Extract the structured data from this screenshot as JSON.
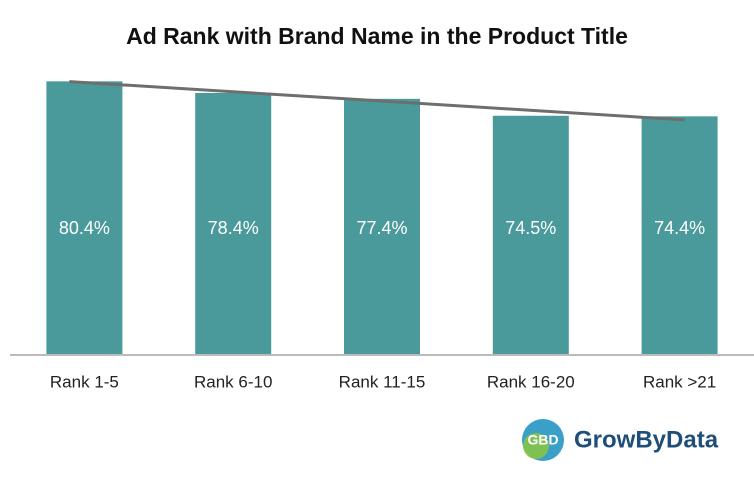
{
  "chart_data": {
    "type": "bar",
    "title": "Ad Rank with Brand Name in the Product Title",
    "categories": [
      "Rank 1-5",
      "Rank 6-10",
      "Rank 11-15",
      "Rank 16-20",
      "Rank >21"
    ],
    "values": [
      80.4,
      78.4,
      77.4,
      74.5,
      74.4
    ],
    "value_labels": [
      "80.4%",
      "78.4%",
      "77.4%",
      "74.5%",
      "74.4%"
    ],
    "color": "#4a9a9c",
    "ylim": [
      33.5,
      82
    ],
    "trendline": true,
    "trendline_color": "#6e6e6e"
  },
  "logo": {
    "text": "GrowByData",
    "icon_text": "GBD"
  }
}
